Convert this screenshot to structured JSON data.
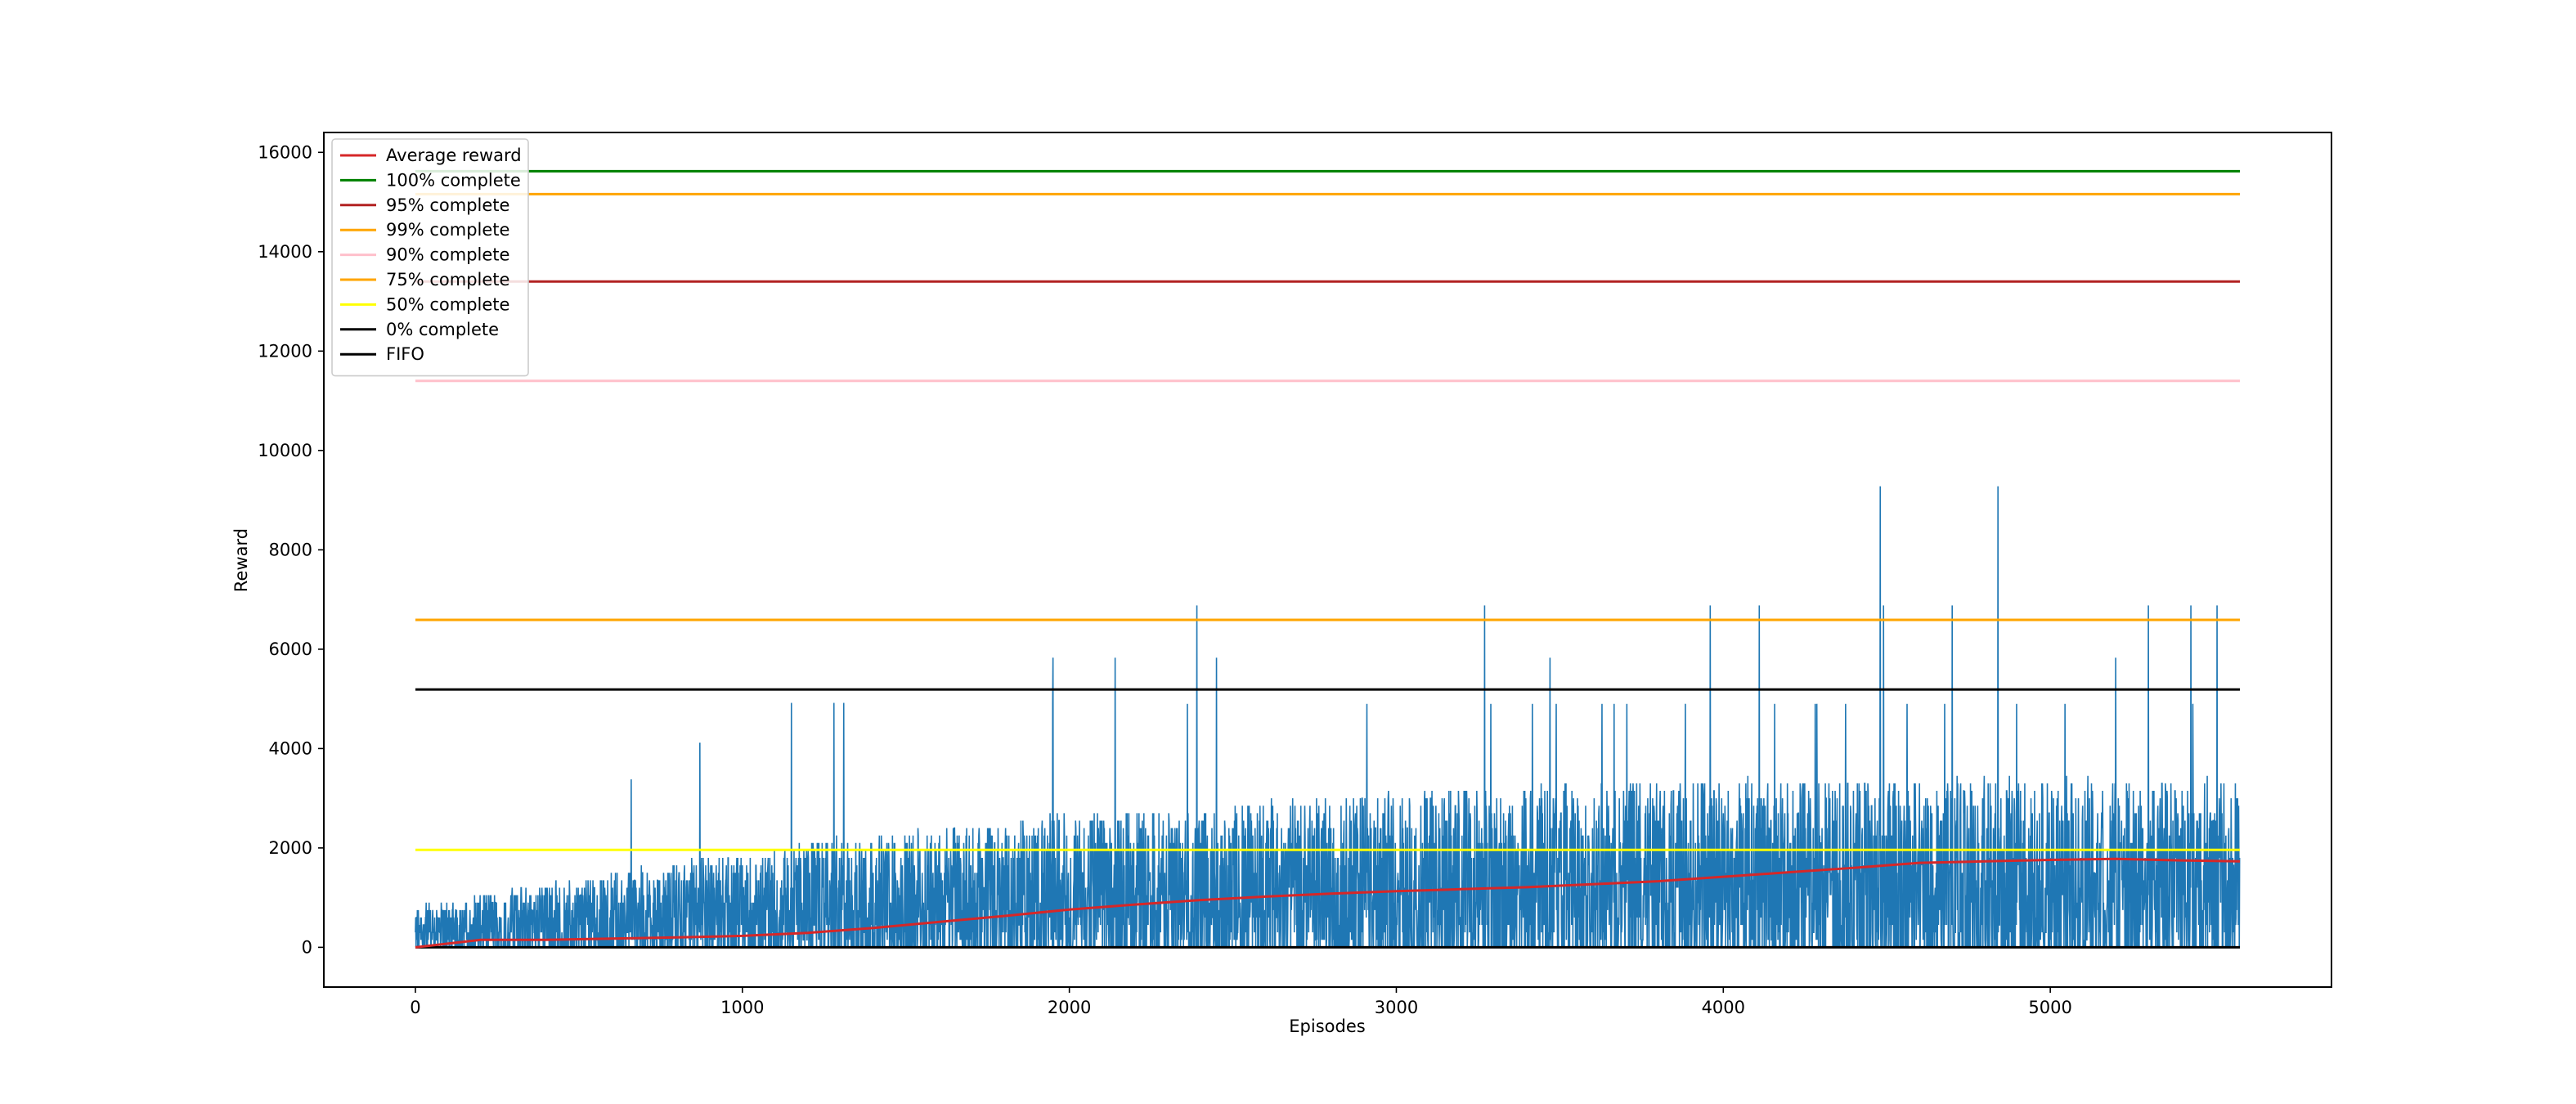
{
  "chart_data": {
    "type": "line",
    "title": "",
    "xlabel": "Episodes",
    "ylabel": "Reward",
    "xlim": [
      -280,
      5860
    ],
    "ylim": [
      -800,
      16400
    ],
    "x_ticks": [
      0,
      1000,
      2000,
      3000,
      4000,
      5000
    ],
    "y_ticks": [
      0,
      2000,
      4000,
      6000,
      8000,
      10000,
      12000,
      14000,
      16000
    ],
    "n_episodes": 5580,
    "grid": false,
    "legend_position": "upper-left",
    "series": [
      {
        "name": "Average reward",
        "color": "#d62728",
        "x": [
          0,
          200,
          400,
          600,
          800,
          1000,
          1200,
          1400,
          1600,
          1800,
          2000,
          2200,
          2400,
          2600,
          2800,
          3000,
          3200,
          3400,
          3600,
          3800,
          4000,
          4200,
          4400,
          4600,
          4800,
          5000,
          5200,
          5400,
          5580
        ],
        "y": [
          0,
          150,
          150,
          175,
          200,
          230,
          290,
          390,
          510,
          630,
          760,
          860,
          950,
          1020,
          1080,
          1130,
          1170,
          1210,
          1270,
          1330,
          1420,
          1510,
          1600,
          1700,
          1730,
          1760,
          1780,
          1750,
          1730
        ]
      },
      {
        "name": "100% complete",
        "color": "#008000",
        "x": [
          0,
          5580
        ],
        "y": [
          15620,
          15620
        ]
      },
      {
        "name": "95% complete",
        "color": "#b22222",
        "x": [
          0,
          5580
        ],
        "y": [
          13400,
          13400
        ]
      },
      {
        "name": "99% complete",
        "color": "#ffa500",
        "x": [
          0,
          5580
        ],
        "y": [
          15160,
          15160
        ]
      },
      {
        "name": "90% complete",
        "color": "#ffc0cb",
        "x": [
          0,
          5580
        ],
        "y": [
          11400,
          11400
        ]
      },
      {
        "name": "75% complete",
        "color": "#ffa500",
        "x": [
          0,
          5580
        ],
        "y": [
          6590,
          6590
        ]
      },
      {
        "name": "50% complete",
        "color": "#ffff00",
        "x": [
          0,
          5580
        ],
        "y": [
          1960,
          1960
        ]
      },
      {
        "name": "0% complete",
        "color": "#000000",
        "x": [
          0,
          5580
        ],
        "y": [
          0,
          0
        ]
      },
      {
        "name": "FIFO",
        "color": "#000000",
        "x": [
          0,
          5580
        ],
        "y": [
          5190,
          5190
        ]
      }
    ],
    "episode_reward_series": {
      "color": "#1f77b4",
      "description_levels": [
        0,
        1250,
        2000,
        2750,
        3400
      ],
      "trend": {
        "x": [
          0,
          500,
          1000,
          1500,
          2000,
          2500,
          3000,
          3500,
          4000,
          4500,
          5000,
          5580
        ],
        "typical_max": [
          800,
          1400,
          1900,
          2400,
          2700,
          2900,
          3100,
          3300,
          3400,
          3400,
          3400,
          3400
        ]
      },
      "peaks": [
        {
          "x": 660,
          "y": 3380
        },
        {
          "x": 870,
          "y": 4120
        },
        {
          "x": 1150,
          "y": 4920
        },
        {
          "x": 1280,
          "y": 4920
        },
        {
          "x": 1310,
          "y": 4920
        },
        {
          "x": 1950,
          "y": 5830
        },
        {
          "x": 2140,
          "y": 5830
        },
        {
          "x": 2390,
          "y": 6880
        },
        {
          "x": 2450,
          "y": 5830
        },
        {
          "x": 3270,
          "y": 6880
        },
        {
          "x": 3470,
          "y": 5830
        },
        {
          "x": 3960,
          "y": 6880
        },
        {
          "x": 4110,
          "y": 6880
        },
        {
          "x": 4480,
          "y": 9280
        },
        {
          "x": 4490,
          "y": 6880
        },
        {
          "x": 4840,
          "y": 9280
        },
        {
          "x": 4700,
          "y": 6880
        },
        {
          "x": 5200,
          "y": 5830
        },
        {
          "x": 5300,
          "y": 6880
        },
        {
          "x": 5430,
          "y": 6880
        },
        {
          "x": 5510,
          "y": 6880
        }
      ]
    }
  }
}
